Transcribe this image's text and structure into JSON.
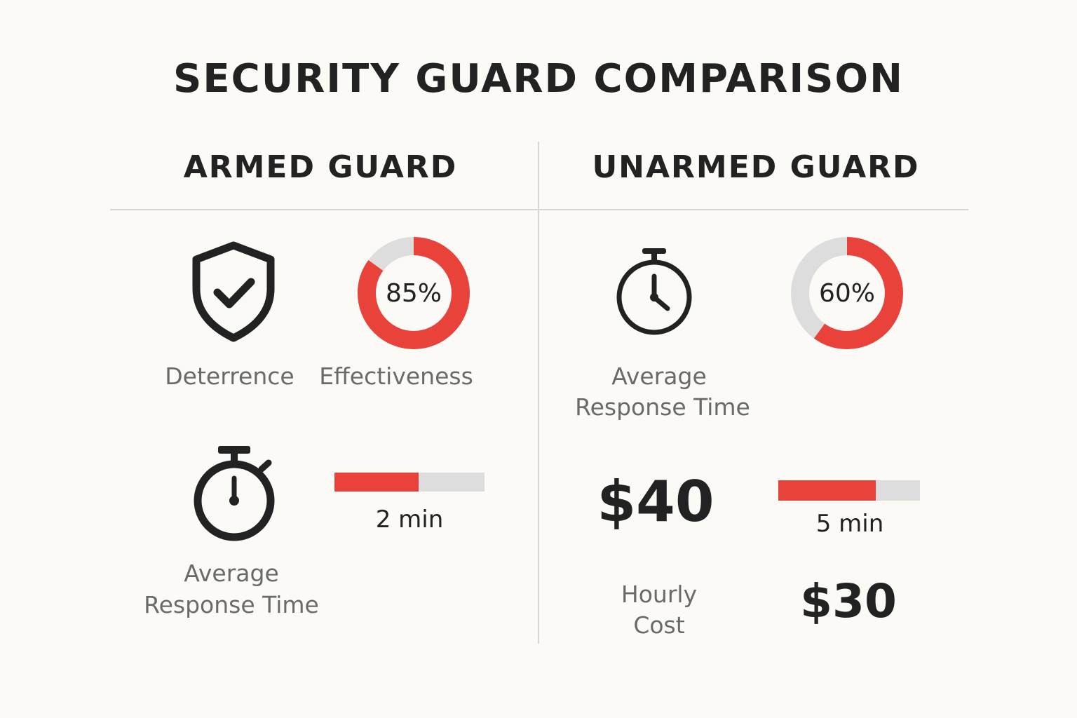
{
  "title": "SECURITY GUARD COMPARISON",
  "colors": {
    "accent": "#e8423a",
    "track": "#dddddd",
    "text": "#222222",
    "muted": "#6a6a6a"
  },
  "armed": {
    "heading": "ARMED GUARD",
    "deterrence_label": "Deterrence",
    "effectiveness_label": "Effectiveness",
    "response_label_line1": "Average",
    "response_label_line2": "Response Time",
    "response_value": "2 min"
  },
  "unarmed": {
    "heading": "UNARMED GUARD",
    "response_label_line1": "Average",
    "response_label_line2": "Response Time",
    "cost_main": "$40",
    "response_value": "5 min",
    "cost_label_line1": "Hourly",
    "cost_label_line2": "Cost",
    "cost_secondary": "$30"
  },
  "icons": [
    "shield-check-icon",
    "stopwatch-icon",
    "clock-icon"
  ],
  "chart_data": [
    {
      "type": "pie",
      "title": "Armed Guard Effectiveness",
      "value_percent": 85,
      "label": "85%"
    },
    {
      "type": "pie",
      "title": "Unarmed Guard",
      "value_percent": 60,
      "label": "60%"
    },
    {
      "type": "bar",
      "title": "Armed Guard Average Response Time",
      "fill_fraction": 0.56,
      "label": "2 min"
    },
    {
      "type": "bar",
      "title": "Unarmed Guard Average Response Time",
      "fill_fraction": 0.69,
      "label": "5 min"
    }
  ]
}
